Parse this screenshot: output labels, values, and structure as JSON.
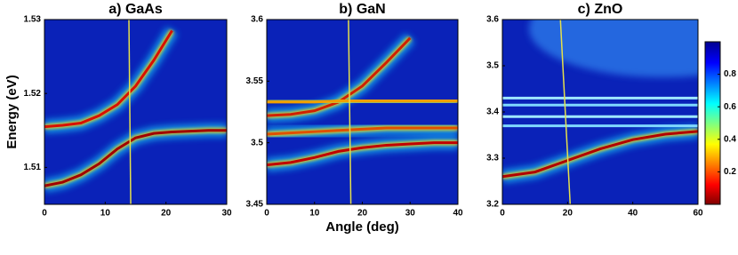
{
  "chart_data": [
    {
      "type": "heatmap",
      "title": "a) GaAs",
      "y_label": "Energy (eV)",
      "xlim": [
        0,
        30
      ],
      "xticks": [
        0,
        10,
        20,
        30
      ],
      "ylim": [
        1.505,
        1.53
      ],
      "yticks": [
        1.51,
        1.52,
        1.53
      ],
      "x": [
        0,
        3,
        6,
        9,
        12,
        15,
        18,
        21,
        24,
        27,
        30
      ],
      "series": [
        {
          "color": "#a00000",
          "values": [
            1.5075,
            1.508,
            1.509,
            1.5105,
            1.5125,
            1.514,
            1.5146,
            1.5148,
            1.5149,
            1.515,
            1.515
          ]
        },
        {
          "color": "#d81000",
          "values": [
            1.5155,
            1.5157,
            1.516,
            1.517,
            1.5185,
            1.521,
            1.5245,
            1.5285,
            null,
            null,
            null
          ]
        }
      ],
      "cut_line": {
        "color": "#e6e04a",
        "x": [
          14.2,
          13.9
        ]
      }
    },
    {
      "type": "heatmap",
      "title": "b) GaN",
      "x_label": "Angle (deg)",
      "xlim": [
        0,
        40
      ],
      "xticks": [
        0,
        10,
        20,
        30,
        40
      ],
      "ylim": [
        3.45,
        3.6
      ],
      "yticks": [
        3.45,
        3.5,
        3.55,
        3.6
      ],
      "x": [
        0,
        5,
        10,
        15,
        20,
        25,
        30,
        35,
        40
      ],
      "series": [
        {
          "color": "#c00000",
          "values": [
            3.482,
            3.484,
            3.488,
            3.493,
            3.496,
            3.498,
            3.499,
            3.5,
            3.5
          ]
        },
        {
          "color": "#e05000",
          "values": [
            3.507,
            3.508,
            3.509,
            3.51,
            3.511,
            3.512,
            3.512,
            3.512,
            3.512
          ]
        },
        {
          "color": "#d02000",
          "values": [
            3.522,
            3.523,
            3.526,
            3.533,
            3.546,
            3.565,
            3.585,
            null,
            null
          ]
        },
        {
          "color": "#f0a000",
          "values": [
            3.533,
            3.533,
            3.533,
            3.534,
            3.534,
            3.534,
            3.534,
            3.534,
            3.534
          ]
        }
      ],
      "cut_line": {
        "color": "#e6e04a",
        "x": [
          17.6,
          17.1
        ]
      }
    },
    {
      "type": "heatmap",
      "title": "c) ZnO",
      "xlim": [
        0,
        60
      ],
      "xticks": [
        0,
        20,
        40,
        60
      ],
      "ylim": [
        3.2,
        3.6
      ],
      "yticks": [
        3.2,
        3.3,
        3.4,
        3.5,
        3.6
      ],
      "x": [
        0,
        10,
        20,
        30,
        40,
        50,
        60
      ],
      "series": [
        {
          "color": "#b00000",
          "values": [
            3.26,
            3.27,
            3.295,
            3.32,
            3.34,
            3.352,
            3.358
          ]
        },
        {
          "color": "#9fe8ff",
          "values": [
            3.43,
            3.43,
            3.43,
            3.43,
            3.43,
            3.43,
            3.43
          ]
        },
        {
          "color": "#7fd8ff",
          "values": [
            3.415,
            3.415,
            3.415,
            3.415,
            3.415,
            3.415,
            3.415
          ]
        },
        {
          "color": "#9fe8ff",
          "values": [
            3.39,
            3.39,
            3.39,
            3.39,
            3.39,
            3.39,
            3.39
          ]
        },
        {
          "color": "#7fd8ff",
          "values": [
            3.37,
            3.37,
            3.37,
            3.37,
            3.37,
            3.37,
            3.37
          ]
        }
      ],
      "cut_line": {
        "color": "#e6e04a",
        "x": [
          20.8,
          17.8
        ]
      },
      "colorbar": {
        "lim": [
          0,
          1
        ],
        "ticks": [
          0.2,
          0.4,
          0.6,
          0.8
        ]
      }
    }
  ]
}
